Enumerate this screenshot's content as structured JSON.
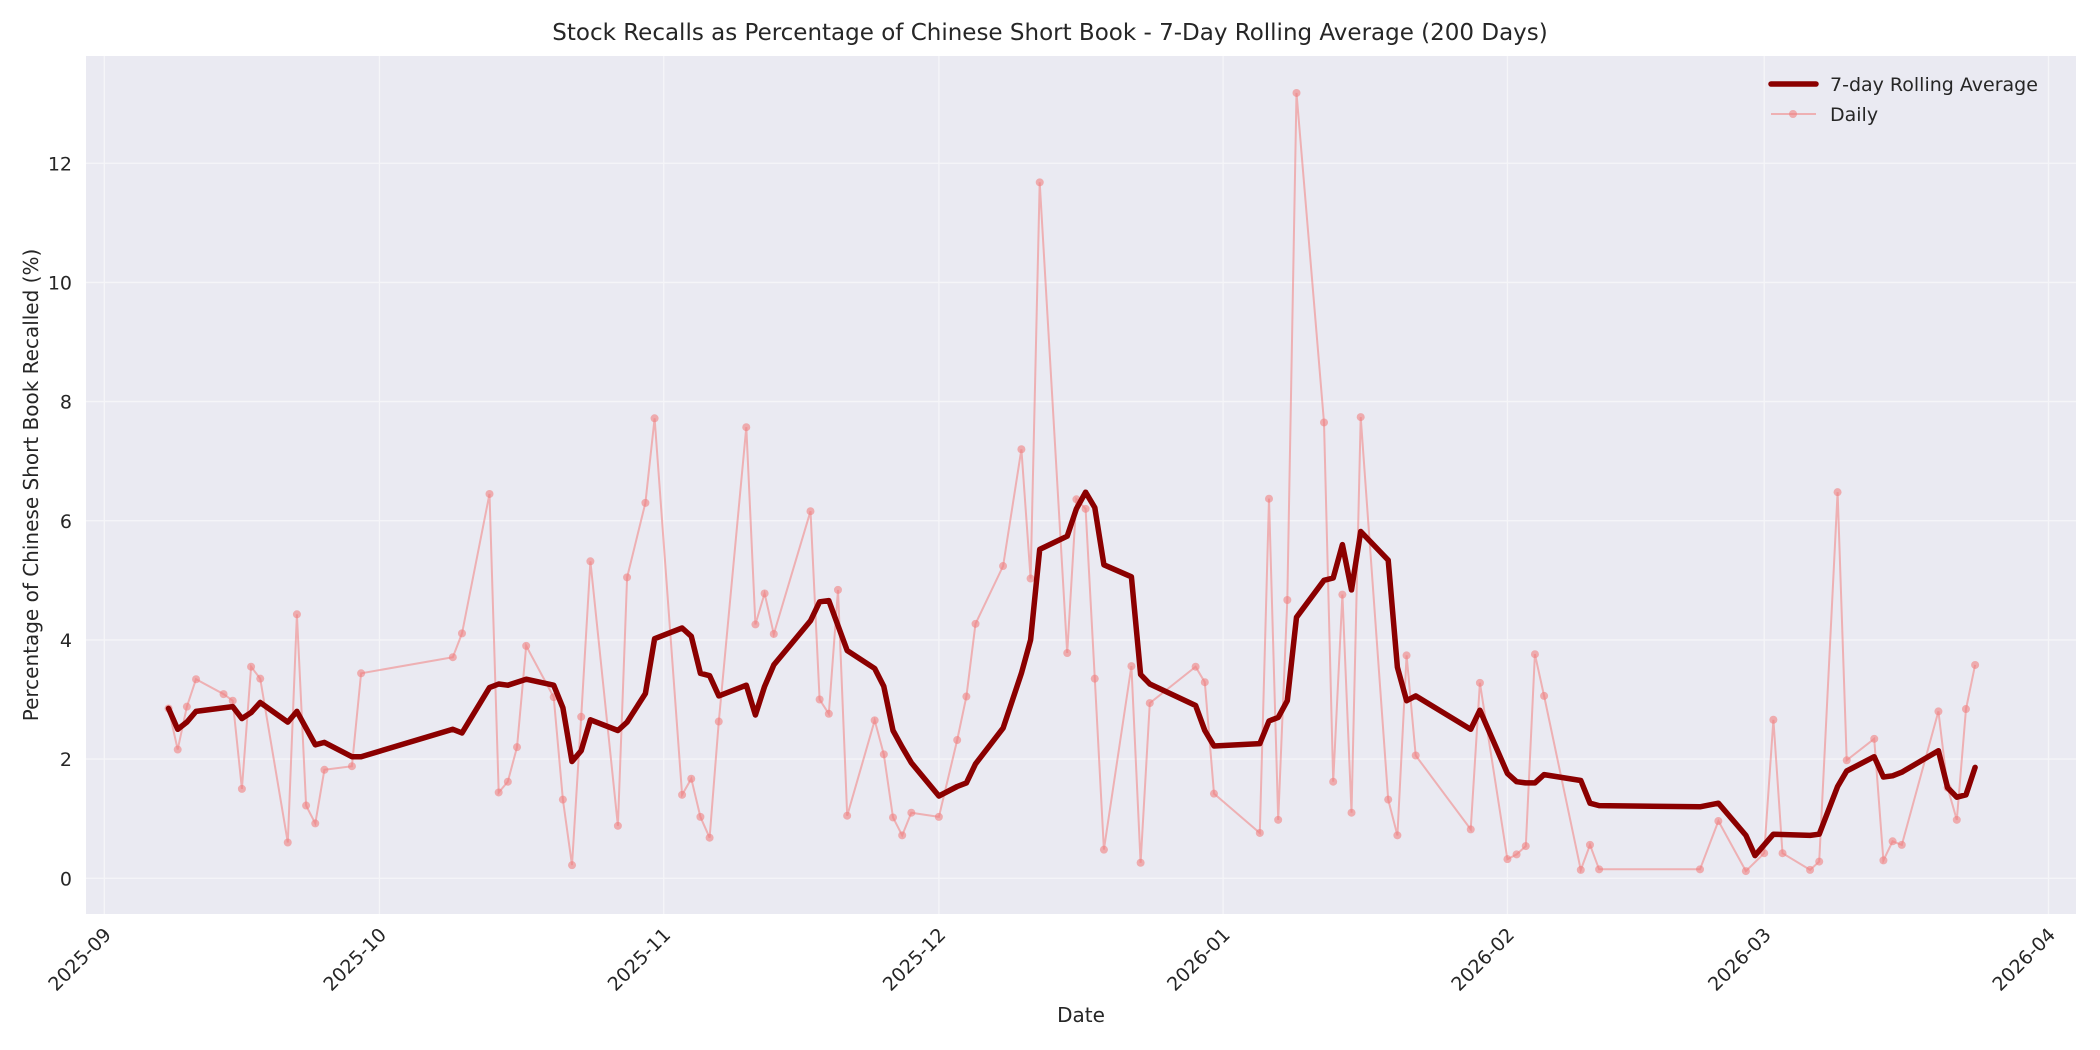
{
  "chart_data": {
    "type": "line",
    "title": "Stock Recalls as Percentage of Chinese Short Book - 7-Day Rolling Average (200 Days)",
    "xlabel": "Date",
    "ylabel": "Percentage of Chinese Short Book Recalled (%)",
    "ylim": [
      -0.6,
      13.8
    ],
    "yticks": [
      0,
      2,
      4,
      6,
      8,
      10,
      12
    ],
    "xlim_days": [
      -2,
      215
    ],
    "xticks": [
      {
        "label": "2025-09",
        "day": 0
      },
      {
        "label": "2025-10",
        "day": 30
      },
      {
        "label": "2025-11",
        "day": 61
      },
      {
        "label": "2025-12",
        "day": 91
      },
      {
        "label": "2026-01",
        "day": 122
      },
      {
        "label": "2026-02",
        "day": 153
      },
      {
        "label": "2026-03",
        "day": 181
      },
      {
        "label": "2026-04",
        "day": 212
      }
    ],
    "x_reference": "day 0 = 2025-09-01",
    "grid": true,
    "legend_position": "upper right",
    "colors": {
      "background": "#eaeaf2",
      "grid": "#f5f5f8",
      "rolling": "#8b0000",
      "daily": "#f08080"
    },
    "series": [
      {
        "name": "7-day Rolling Average",
        "style": "thick-line",
        "points": [
          [
            7,
            2.85
          ],
          [
            8,
            2.5
          ],
          [
            9,
            2.62
          ],
          [
            10,
            2.8
          ],
          [
            14,
            2.88
          ],
          [
            15,
            2.68
          ],
          [
            16,
            2.78
          ],
          [
            17,
            2.95
          ],
          [
            20,
            2.62
          ],
          [
            21,
            2.8
          ],
          [
            23,
            2.24
          ],
          [
            24,
            2.28
          ],
          [
            27,
            2.04
          ],
          [
            28,
            2.04
          ],
          [
            38,
            2.5
          ],
          [
            39,
            2.44
          ],
          [
            42,
            3.2
          ],
          [
            43,
            3.26
          ],
          [
            44,
            3.24
          ],
          [
            46,
            3.34
          ],
          [
            49,
            3.24
          ],
          [
            50,
            2.86
          ],
          [
            51,
            1.96
          ],
          [
            52,
            2.14
          ],
          [
            53,
            2.66
          ],
          [
            56,
            2.48
          ],
          [
            57,
            2.62
          ],
          [
            59,
            3.1
          ],
          [
            60,
            4.02
          ],
          [
            63,
            4.2
          ],
          [
            64,
            4.06
          ],
          [
            65,
            3.44
          ],
          [
            66,
            3.4
          ],
          [
            67,
            3.06
          ],
          [
            70,
            3.24
          ],
          [
            71,
            2.74
          ],
          [
            72,
            3.22
          ],
          [
            73,
            3.58
          ],
          [
            77,
            4.32
          ],
          [
            78,
            4.64
          ],
          [
            79,
            4.66
          ],
          [
            81,
            3.82
          ],
          [
            84,
            3.52
          ],
          [
            85,
            3.22
          ],
          [
            86,
            2.48
          ],
          [
            87,
            2.2
          ],
          [
            88,
            1.94
          ],
          [
            91,
            1.38
          ],
          [
            93,
            1.54
          ],
          [
            94,
            1.6
          ],
          [
            95,
            1.92
          ],
          [
            98,
            2.52
          ],
          [
            100,
            3.44
          ],
          [
            101,
            4.0
          ],
          [
            102,
            5.52
          ],
          [
            105,
            5.74
          ],
          [
            106,
            6.2
          ],
          [
            107,
            6.48
          ],
          [
            108,
            6.22
          ],
          [
            109,
            5.26
          ],
          [
            112,
            5.06
          ],
          [
            113,
            3.42
          ],
          [
            114,
            3.26
          ],
          [
            119,
            2.9
          ],
          [
            120,
            2.48
          ],
          [
            121,
            2.22
          ],
          [
            126,
            2.26
          ],
          [
            127,
            2.64
          ],
          [
            128,
            2.7
          ],
          [
            129,
            2.98
          ],
          [
            130,
            4.38
          ],
          [
            133,
            5.0
          ],
          [
            134,
            5.04
          ],
          [
            135,
            5.6
          ],
          [
            136,
            4.84
          ],
          [
            137,
            5.82
          ],
          [
            140,
            5.34
          ],
          [
            141,
            3.54
          ],
          [
            142,
            2.98
          ],
          [
            143,
            3.06
          ],
          [
            149,
            2.5
          ],
          [
            150,
            2.82
          ],
          [
            153,
            1.76
          ],
          [
            154,
            1.62
          ],
          [
            155,
            1.6
          ],
          [
            156,
            1.6
          ],
          [
            157,
            1.74
          ],
          [
            161,
            1.64
          ],
          [
            162,
            1.26
          ],
          [
            163,
            1.22
          ],
          [
            174,
            1.2
          ],
          [
            176,
            1.26
          ],
          [
            179,
            0.72
          ],
          [
            180,
            0.38
          ],
          [
            182,
            0.74
          ],
          [
            186,
            0.72
          ],
          [
            187,
            0.74
          ],
          [
            189,
            1.54
          ],
          [
            190,
            1.8
          ],
          [
            193,
            2.04
          ],
          [
            194,
            1.7
          ],
          [
            195,
            1.72
          ],
          [
            196,
            1.78
          ],
          [
            200,
            2.14
          ],
          [
            201,
            1.52
          ],
          [
            202,
            1.36
          ],
          [
            203,
            1.4
          ],
          [
            204,
            1.86
          ]
        ]
      },
      {
        "name": "Daily",
        "style": "thin-line-markers",
        "points": [
          [
            7,
            2.85
          ],
          [
            8,
            2.16
          ],
          [
            9,
            2.88
          ],
          [
            10,
            3.34
          ],
          [
            13,
            3.09
          ],
          [
            14,
            2.98
          ],
          [
            15,
            1.5
          ],
          [
            16,
            3.55
          ],
          [
            17,
            3.35
          ],
          [
            20,
            0.6
          ],
          [
            21,
            4.43
          ],
          [
            22,
            1.22
          ],
          [
            23,
            0.92
          ],
          [
            24,
            1.82
          ],
          [
            27,
            1.88
          ],
          [
            28,
            3.44
          ],
          [
            38,
            3.71
          ],
          [
            39,
            4.11
          ],
          [
            42,
            6.45
          ],
          [
            43,
            1.44
          ],
          [
            44,
            1.62
          ],
          [
            45,
            2.2
          ],
          [
            46,
            3.9
          ],
          [
            49,
            3.04
          ],
          [
            50,
            1.32
          ],
          [
            51,
            0.22
          ],
          [
            52,
            2.71
          ],
          [
            53,
            5.32
          ],
          [
            56,
            0.88
          ],
          [
            57,
            5.05
          ],
          [
            59,
            6.3
          ],
          [
            60,
            7.72
          ],
          [
            63,
            1.4
          ],
          [
            64,
            1.67
          ],
          [
            65,
            1.03
          ],
          [
            66,
            0.68
          ],
          [
            67,
            2.63
          ],
          [
            70,
            7.57
          ],
          [
            71,
            4.26
          ],
          [
            72,
            4.78
          ],
          [
            73,
            4.1
          ],
          [
            77,
            6.16
          ],
          [
            78,
            3.0
          ],
          [
            79,
            2.76
          ],
          [
            80,
            4.84
          ],
          [
            81,
            1.05
          ],
          [
            84,
            2.65
          ],
          [
            85,
            2.08
          ],
          [
            86,
            1.02
          ],
          [
            87,
            0.72
          ],
          [
            88,
            1.1
          ],
          [
            91,
            1.03
          ],
          [
            93,
            2.32
          ],
          [
            94,
            3.05
          ],
          [
            95,
            4.27
          ],
          [
            98,
            5.24
          ],
          [
            100,
            7.2
          ],
          [
            101,
            5.03
          ],
          [
            102,
            11.68
          ],
          [
            105,
            3.78
          ],
          [
            106,
            6.36
          ],
          [
            107,
            6.2
          ],
          [
            108,
            3.35
          ],
          [
            109,
            0.48
          ],
          [
            112,
            3.56
          ],
          [
            113,
            0.26
          ],
          [
            114,
            2.94
          ],
          [
            119,
            3.55
          ],
          [
            120,
            3.29
          ],
          [
            121,
            1.42
          ],
          [
            126,
            0.76
          ],
          [
            127,
            6.37
          ],
          [
            128,
            0.98
          ],
          [
            129,
            4.67
          ],
          [
            130,
            13.18
          ],
          [
            133,
            7.65
          ],
          [
            134,
            1.62
          ],
          [
            135,
            4.76
          ],
          [
            136,
            1.1
          ],
          [
            137,
            7.74
          ],
          [
            140,
            1.32
          ],
          [
            141,
            0.72
          ],
          [
            142,
            3.74
          ],
          [
            143,
            2.06
          ],
          [
            149,
            0.82
          ],
          [
            150,
            3.28
          ],
          [
            153,
            0.32
          ],
          [
            154,
            0.4
          ],
          [
            155,
            0.54
          ],
          [
            156,
            3.76
          ],
          [
            157,
            3.06
          ],
          [
            161,
            0.14
          ],
          [
            162,
            0.56
          ],
          [
            163,
            0.15
          ],
          [
            174,
            0.15
          ],
          [
            176,
            0.96
          ],
          [
            179,
            0.12
          ],
          [
            181,
            0.42
          ],
          [
            182,
            2.66
          ],
          [
            183,
            0.42
          ],
          [
            186,
            0.14
          ],
          [
            187,
            0.28
          ],
          [
            189,
            6.48
          ],
          [
            190,
            1.98
          ],
          [
            193,
            2.34
          ],
          [
            194,
            0.3
          ],
          [
            195,
            0.62
          ],
          [
            196,
            0.56
          ],
          [
            200,
            2.8
          ],
          [
            201,
            1.52
          ],
          [
            202,
            0.98
          ],
          [
            203,
            2.84
          ],
          [
            204,
            3.58
          ]
        ]
      }
    ]
  },
  "legend": {
    "items": [
      {
        "label": "7-day Rolling Average"
      },
      {
        "label": "Daily"
      }
    ]
  }
}
